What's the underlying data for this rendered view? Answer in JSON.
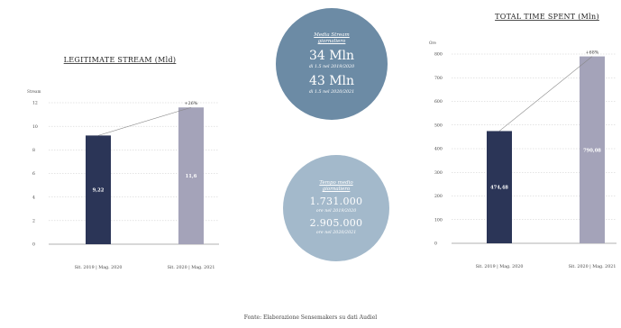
{
  "chart_data": [
    {
      "type": "bar",
      "title": "LEGITIMATE STREAM (Mld)",
      "ylabel": "Stream",
      "categories": [
        "Sit. 2019 | Mag. 2020",
        "Sit. 2020 | Mag. 2021"
      ],
      "values": [
        9.22,
        11.6
      ],
      "value_labels": [
        "9,22",
        "11,6"
      ],
      "ylim": [
        0,
        12
      ],
      "yticks": [
        0,
        2,
        4,
        6,
        8,
        10,
        12
      ],
      "growth_label": "+26%",
      "bar_colors": [
        "#2b3557",
        "#a4a3b9"
      ],
      "grid": true
    },
    {
      "type": "bar",
      "title": "TOTAL TIME SPENT (Mln)",
      "ylabel": "Ore",
      "categories": [
        "Sit. 2019 | Mag. 2020",
        "Sit. 2020 | Mag. 2021"
      ],
      "values": [
        474.48,
        790.08
      ],
      "value_labels": [
        "474,48",
        "790,08"
      ],
      "ylim": [
        0,
        800
      ],
      "yticks": [
        0,
        100,
        200,
        300,
        400,
        500,
        600,
        700,
        800
      ],
      "growth_label": "+68%",
      "bar_colors": [
        "#2b3557",
        "#a4a3b9"
      ],
      "grid": true
    }
  ],
  "circles": [
    {
      "heading": [
        "Media Stream",
        "giornaliero"
      ],
      "items": [
        {
          "value": "34 Mln",
          "caption": "di 1.5 nel 2019/2020"
        },
        {
          "value": "43 Mln",
          "caption": "di 1.5 nel 2020/2021"
        }
      ],
      "color": "#6c8ba5"
    },
    {
      "heading": [
        "Tempo medio",
        "giornaliero"
      ],
      "items": [
        {
          "value": "1.731.000",
          "caption": "ore nel 2019/2020"
        },
        {
          "value": "2.905.000",
          "caption": "ore nel 2020/2021"
        }
      ],
      "color": "#a3b9cb"
    }
  ],
  "source": "Fonte: Elaborazione Sensemakers su dati Audiel"
}
